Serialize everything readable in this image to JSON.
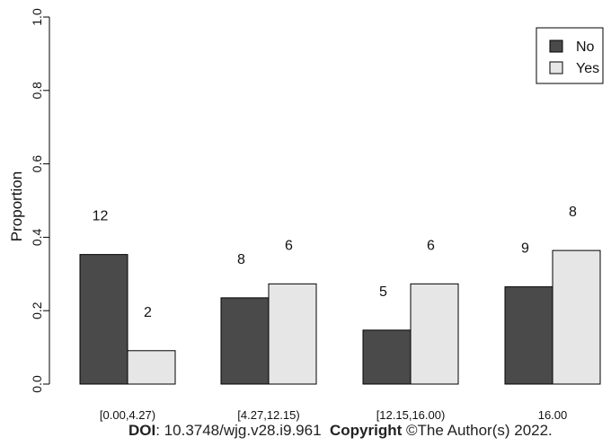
{
  "chart_data": {
    "type": "bar",
    "categories": [
      "[0.00,4.27)",
      "[4.27,12.15)",
      "[12.15,16.00)",
      "16.00"
    ],
    "series": [
      {
        "name": "No",
        "values": [
          0.353,
          0.235,
          0.147,
          0.265
        ],
        "counts": [
          "12",
          "8",
          "5",
          "9"
        ],
        "color": "#4a4a4a"
      },
      {
        "name": "Yes",
        "values": [
          0.091,
          0.273,
          0.273,
          0.364
        ],
        "counts": [
          "2",
          "6",
          "6",
          "8"
        ],
        "color": "#e6e6e6"
      }
    ],
    "xlabel": "",
    "ylabel": "Proportion",
    "ylim": [
      0,
      1
    ],
    "yticks": [
      "0.0",
      "0.2",
      "0.4",
      "0.6",
      "0.8",
      "1.0"
    ],
    "legend_position": "top-right",
    "grid": false
  },
  "footer": {
    "doi_label": "DOI",
    "doi_value": ": 10.3748/wjg.v28.i9.961",
    "copyright_label": "Copyright",
    "copyright_value": " ©The Author(s) 2022."
  }
}
